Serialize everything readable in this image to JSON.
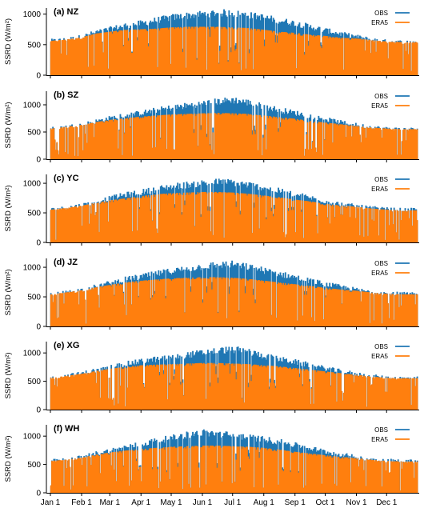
{
  "figure": {
    "y_axis_label": "SSRD (W/m²)",
    "legend_labels": [
      "OBS",
      "ERA5"
    ],
    "legend_position": "top-right",
    "y_ticks": [
      0,
      500,
      1000
    ],
    "x_tick_labels": [
      "Jan 1",
      "Feb 1",
      "Mar 1",
      "Apr 1",
      "May 1",
      "Jun 1",
      "Jul 1",
      "Aug 1",
      "Sep 1",
      "Oct 1",
      "Nov 1",
      "Dec 1"
    ],
    "x_tick_days": [
      1,
      32,
      60,
      91,
      121,
      152,
      182,
      213,
      244,
      274,
      305,
      335
    ]
  },
  "series_colors": {
    "OBS": "#1f77b4",
    "ERA5": "#ff7f0e"
  },
  "chart_data": [
    {
      "type": "area",
      "title": "(a) NZ",
      "ylabel": "SSRD (W/m²)",
      "ylim": [
        0,
        1100
      ],
      "x_unit": "day of year",
      "series": [
        {
          "name": "OBS",
          "x": [
            1,
            15,
            32,
            46,
            60,
            74,
            91,
            105,
            121,
            136,
            152,
            167,
            182,
            197,
            213,
            228,
            244,
            259,
            274,
            289,
            305,
            320,
            335,
            350,
            365
          ],
          "values": [
            580,
            600,
            650,
            730,
            780,
            840,
            880,
            930,
            980,
            1010,
            1040,
            1060,
            1050,
            1020,
            980,
            930,
            880,
            820,
            760,
            700,
            650,
            600,
            570,
            560,
            560
          ]
        },
        {
          "name": "ERA5",
          "x": [
            1,
            15,
            32,
            46,
            60,
            74,
            91,
            105,
            121,
            136,
            152,
            167,
            182,
            197,
            213,
            228,
            244,
            259,
            274,
            289,
            305,
            320,
            335,
            350,
            365
          ],
          "values": [
            560,
            580,
            620,
            680,
            710,
            740,
            750,
            760,
            780,
            790,
            790,
            790,
            780,
            770,
            740,
            710,
            690,
            660,
            640,
            610,
            600,
            570,
            550,
            540,
            540
          ]
        }
      ]
    },
    {
      "type": "area",
      "title": "(b) SZ",
      "ylabel": "SSRD (W/m²)",
      "ylim": [
        0,
        1250
      ],
      "x_unit": "day of year",
      "series": [
        {
          "name": "OBS",
          "x": [
            1,
            15,
            32,
            46,
            60,
            74,
            91,
            105,
            121,
            136,
            152,
            167,
            182,
            197,
            213,
            228,
            244,
            259,
            274,
            289,
            305,
            320,
            335,
            350,
            365
          ],
          "values": [
            580,
            610,
            660,
            720,
            780,
            830,
            880,
            930,
            980,
            1020,
            1060,
            1100,
            1130,
            1080,
            1000,
            940,
            880,
            820,
            760,
            700,
            650,
            610,
            580,
            570,
            570
          ]
        },
        {
          "name": "ERA5",
          "x": [
            1,
            15,
            32,
            46,
            60,
            74,
            91,
            105,
            121,
            136,
            152,
            167,
            182,
            197,
            213,
            228,
            244,
            259,
            274,
            289,
            305,
            320,
            335,
            350,
            365
          ],
          "values": [
            560,
            590,
            630,
            680,
            720,
            750,
            780,
            800,
            820,
            830,
            840,
            850,
            840,
            830,
            800,
            770,
            740,
            700,
            670,
            640,
            610,
            580,
            560,
            550,
            550
          ]
        }
      ]
    },
    {
      "type": "area",
      "title": "(c) YC",
      "ylabel": "SSRD (W/m²)",
      "ylim": [
        0,
        1150
      ],
      "x_unit": "day of year",
      "series": [
        {
          "name": "OBS",
          "x": [
            1,
            15,
            32,
            46,
            60,
            74,
            91,
            105,
            121,
            136,
            152,
            167,
            182,
            197,
            213,
            228,
            244,
            259,
            274,
            289,
            305,
            320,
            335,
            350,
            365
          ],
          "values": [
            570,
            600,
            650,
            720,
            770,
            830,
            880,
            930,
            980,
            1010,
            1040,
            1060,
            1050,
            1010,
            960,
            900,
            840,
            780,
            720,
            670,
            630,
            600,
            580,
            570,
            570
          ]
        },
        {
          "name": "ERA5",
          "x": [
            1,
            15,
            32,
            46,
            60,
            74,
            91,
            105,
            121,
            136,
            152,
            167,
            182,
            197,
            213,
            228,
            244,
            259,
            274,
            289,
            305,
            320,
            335,
            350,
            365
          ],
          "values": [
            550,
            580,
            620,
            670,
            710,
            740,
            780,
            810,
            830,
            840,
            850,
            850,
            840,
            820,
            790,
            760,
            720,
            690,
            650,
            620,
            600,
            570,
            550,
            540,
            540
          ]
        }
      ]
    },
    {
      "type": "area",
      "title": "(d) JZ",
      "ylabel": "SSRD (W/m²)",
      "ylim": [
        0,
        1150
      ],
      "x_unit": "day of year",
      "series": [
        {
          "name": "OBS",
          "x": [
            1,
            15,
            32,
            46,
            60,
            74,
            91,
            105,
            121,
            136,
            152,
            167,
            182,
            197,
            213,
            228,
            244,
            259,
            274,
            289,
            305,
            320,
            335,
            350,
            365
          ],
          "values": [
            560,
            590,
            640,
            700,
            760,
            820,
            870,
            920,
            970,
            1010,
            1050,
            1080,
            1090,
            1040,
            980,
            920,
            860,
            800,
            740,
            690,
            640,
            600,
            580,
            570,
            560
          ]
        },
        {
          "name": "ERA5",
          "x": [
            1,
            15,
            32,
            46,
            60,
            74,
            91,
            105,
            121,
            136,
            152,
            167,
            182,
            197,
            213,
            228,
            244,
            259,
            274,
            289,
            305,
            320,
            335,
            350,
            365
          ],
          "values": [
            540,
            570,
            610,
            660,
            700,
            740,
            770,
            790,
            810,
            820,
            830,
            830,
            820,
            800,
            770,
            740,
            710,
            680,
            650,
            620,
            600,
            570,
            550,
            540,
            540
          ]
        }
      ]
    },
    {
      "type": "area",
      "title": "(e) XG",
      "ylabel": "SSRD (W/m²)",
      "ylim": [
        0,
        1200
      ],
      "x_unit": "day of year",
      "series": [
        {
          "name": "OBS",
          "x": [
            1,
            15,
            32,
            46,
            60,
            74,
            91,
            105,
            121,
            136,
            152,
            167,
            182,
            197,
            213,
            228,
            244,
            259,
            274,
            289,
            305,
            320,
            335,
            350,
            365
          ],
          "values": [
            580,
            610,
            660,
            720,
            770,
            830,
            880,
            920,
            960,
            1000,
            1040,
            1080,
            1100,
            1060,
            980,
            920,
            870,
            810,
            750,
            700,
            650,
            610,
            580,
            570,
            570
          ]
        },
        {
          "name": "ERA5",
          "x": [
            1,
            15,
            32,
            46,
            60,
            74,
            91,
            105,
            121,
            136,
            152,
            167,
            182,
            197,
            213,
            228,
            244,
            259,
            274,
            289,
            305,
            320,
            335,
            350,
            365
          ],
          "values": [
            560,
            590,
            630,
            680,
            720,
            750,
            780,
            790,
            800,
            810,
            820,
            820,
            810,
            800,
            780,
            760,
            730,
            700,
            670,
            640,
            610,
            580,
            560,
            550,
            550
          ]
        }
      ]
    },
    {
      "type": "area",
      "title": "(f) WH",
      "ylabel": "SSRD (W/m²)",
      "ylim": [
        0,
        1200
      ],
      "x_unit": "day of year",
      "series": [
        {
          "name": "OBS",
          "x": [
            1,
            15,
            32,
            46,
            60,
            74,
            91,
            105,
            121,
            136,
            152,
            167,
            182,
            197,
            213,
            228,
            244,
            259,
            274,
            289,
            305,
            320,
            335,
            350,
            365
          ],
          "values": [
            580,
            600,
            650,
            720,
            770,
            830,
            890,
            950,
            1000,
            1060,
            1100,
            1080,
            1050,
            1020,
            980,
            930,
            870,
            810,
            750,
            700,
            650,
            610,
            590,
            580,
            580
          ]
        },
        {
          "name": "ERA5",
          "x": [
            1,
            15,
            32,
            46,
            60,
            74,
            91,
            105,
            121,
            136,
            152,
            167,
            182,
            197,
            213,
            228,
            244,
            259,
            274,
            289,
            305,
            320,
            335,
            350,
            365
          ],
          "values": [
            560,
            580,
            620,
            670,
            710,
            740,
            770,
            790,
            810,
            820,
            830,
            830,
            820,
            810,
            790,
            760,
            720,
            690,
            660,
            630,
            610,
            580,
            560,
            550,
            550
          ]
        }
      ]
    }
  ]
}
